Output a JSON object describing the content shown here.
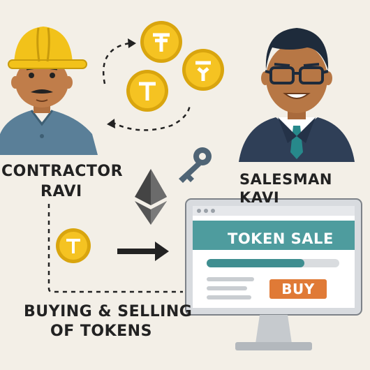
{
  "people": {
    "contractor": {
      "title": "CONTRACTOR",
      "name": "RAVI"
    },
    "salesman": {
      "label": "SALESMAN KAVI"
    }
  },
  "caption": {
    "line1": "BUYING & SELLING",
    "line2": "OF TOKENS"
  },
  "monitor": {
    "title": "TOKEN SALE",
    "buy_label": "BUY"
  },
  "colors": {
    "background": "#f3efe7",
    "coin": "#f5c322",
    "coin_rim": "#d9a50e",
    "helmet": "#f2c21a",
    "monitor_header": "#4e9c9e",
    "progress": "#3f8e90",
    "buy_button": "#e07a36",
    "suit": "#2f3f57",
    "tie": "#27898b",
    "contractor_shirt": "#5a7f98"
  },
  "icons": [
    "coin-icon",
    "ethereum-icon",
    "key-icon",
    "arrow-right-icon",
    "hard-hat-icon",
    "glasses-icon"
  ]
}
